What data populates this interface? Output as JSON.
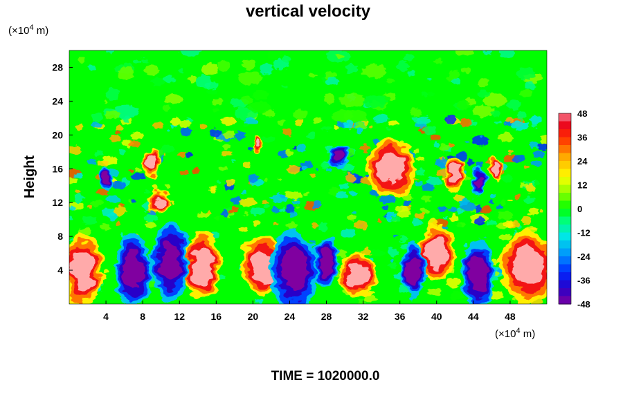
{
  "chart_data": {
    "type": "heatmap",
    "title": "vertical velocity",
    "xlabel": "",
    "ylabel": "Height",
    "x_unit": "(×10⁴ m)",
    "y_unit": "(×10⁴ m)",
    "xlim": [
      0,
      52
    ],
    "ylim": [
      0,
      30
    ],
    "x_ticks": [
      4,
      8,
      12,
      16,
      20,
      24,
      28,
      32,
      36,
      40,
      44,
      48
    ],
    "y_ticks": [
      4,
      8,
      12,
      16,
      20,
      24,
      28
    ],
    "colorbar": {
      "min": -48,
      "max": 48,
      "step": 4,
      "tick_labels": [
        48,
        36,
        24,
        12,
        0,
        -12,
        -24,
        -36,
        -48
      ]
    },
    "grid": false,
    "footer": "TIME = 1020000.0",
    "features": [
      {
        "type": "updraft",
        "x": 1.5,
        "y": 4,
        "rx": 1.6,
        "ry": 3.2
      },
      {
        "type": "updraft",
        "x": 14.5,
        "y": 4.5,
        "rx": 1.5,
        "ry": 3.0
      },
      {
        "type": "updraft",
        "x": 21,
        "y": 4.5,
        "rx": 1.8,
        "ry": 2.7
      },
      {
        "type": "updraft",
        "x": 31.5,
        "y": 3.5,
        "rx": 1.5,
        "ry": 2.0
      },
      {
        "type": "updraft",
        "x": 40,
        "y": 6,
        "rx": 1.5,
        "ry": 2.5
      },
      {
        "type": "updraft",
        "x": 50,
        "y": 4.5,
        "rx": 2.3,
        "ry": 3.2
      },
      {
        "type": "updraft",
        "x": 9,
        "y": 17,
        "rx": 0.7,
        "ry": 1.2
      },
      {
        "type": "updraft",
        "x": 10,
        "y": 12,
        "rx": 1.0,
        "ry": 1.0
      },
      {
        "type": "updraft",
        "x": 35,
        "y": 16,
        "rx": 2.0,
        "ry": 2.5
      },
      {
        "type": "updraft",
        "x": 42,
        "y": 15.5,
        "rx": 0.7,
        "ry": 1.5
      },
      {
        "type": "updraft",
        "x": 46.5,
        "y": 16,
        "rx": 0.6,
        "ry": 1.2
      },
      {
        "type": "updraft",
        "x": 20.5,
        "y": 19,
        "rx": 0.5,
        "ry": 0.8
      },
      {
        "type": "downdraft",
        "x": 7,
        "y": 4,
        "rx": 1.5,
        "ry": 3.2
      },
      {
        "type": "downdraft",
        "x": 11,
        "y": 5,
        "rx": 1.5,
        "ry": 3.5
      },
      {
        "type": "downdraft",
        "x": 24.5,
        "y": 4,
        "rx": 2.0,
        "ry": 3.5
      },
      {
        "type": "downdraft",
        "x": 28,
        "y": 5,
        "rx": 1.0,
        "ry": 2.0
      },
      {
        "type": "downdraft",
        "x": 37.5,
        "y": 4,
        "rx": 1.0,
        "ry": 2.5
      },
      {
        "type": "downdraft",
        "x": 44.5,
        "y": 3.5,
        "rx": 1.3,
        "ry": 3.0
      },
      {
        "type": "downdraft",
        "x": 4,
        "y": 15,
        "rx": 0.6,
        "ry": 1.0
      },
      {
        "type": "downdraft",
        "x": 29.5,
        "y": 17.5,
        "rx": 1.0,
        "ry": 1.0
      },
      {
        "type": "downdraft",
        "x": 44.5,
        "y": 14.5,
        "rx": 0.6,
        "ry": 1.3
      }
    ]
  }
}
